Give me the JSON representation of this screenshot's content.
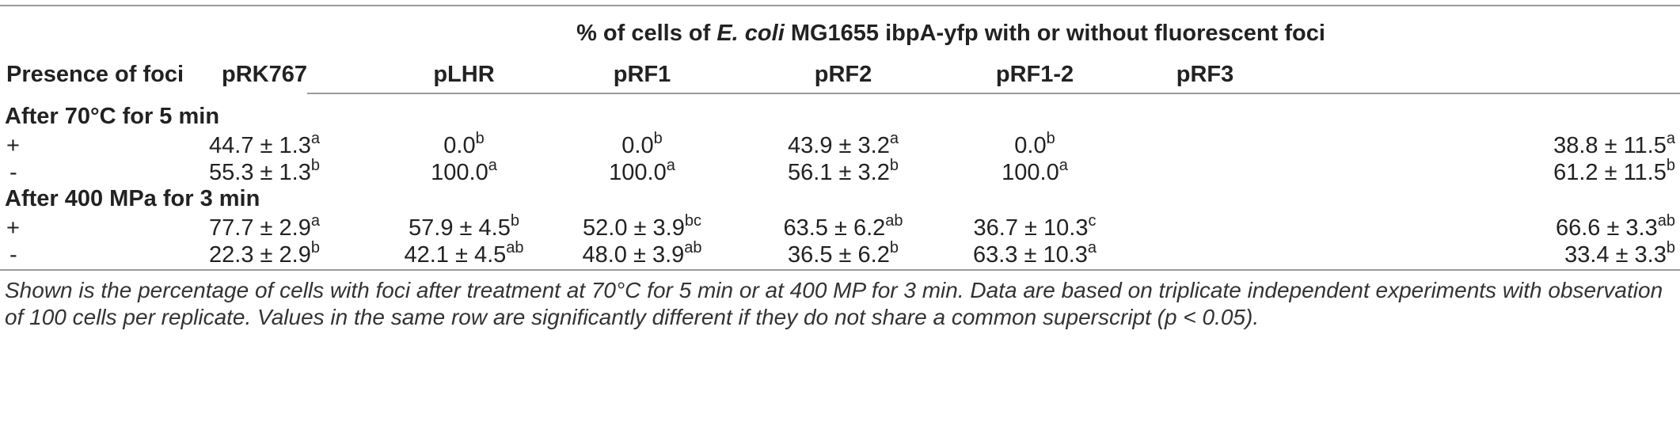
{
  "header": {
    "spanner_prefix": "% of cells of ",
    "spanner_species": "E. coli",
    "spanner_suffix": " MG1655 ibpA-yfp with or without fluorescent foci",
    "row_header": "Presence of foci",
    "columns": [
      "pRK767",
      "pLHR",
      "pRF1",
      "pRF2",
      "pRF1-2",
      "pRF3"
    ]
  },
  "sections": [
    {
      "title": "After 70°C for 5 min",
      "rows": [
        {
          "label": "+",
          "cells": [
            {
              "value": "44.7 ± 1.3",
              "sup": "a"
            },
            {
              "value": "0.0",
              "sup": "b"
            },
            {
              "value": "0.0",
              "sup": "b"
            },
            {
              "value": "43.9 ± 3.2",
              "sup": "a"
            },
            {
              "value": "0.0",
              "sup": "b"
            },
            {
              "value": "38.8 ± 11.5",
              "sup": "a"
            }
          ]
        },
        {
          "label": "-",
          "cells": [
            {
              "value": "55.3 ± 1.3",
              "sup": "b"
            },
            {
              "value": "100.0",
              "sup": "a"
            },
            {
              "value": "100.0",
              "sup": "a"
            },
            {
              "value": "56.1 ± 3.2",
              "sup": "b"
            },
            {
              "value": "100.0",
              "sup": "a"
            },
            {
              "value": "61.2 ± 11.5",
              "sup": "b"
            }
          ]
        }
      ]
    },
    {
      "title": "After 400 MPa for 3 min",
      "rows": [
        {
          "label": "+",
          "cells": [
            {
              "value": "77.7 ± 2.9",
              "sup": "a"
            },
            {
              "value": "57.9 ± 4.5",
              "sup": "b"
            },
            {
              "value": "52.0 ± 3.9",
              "sup": "bc"
            },
            {
              "value": "63.5 ± 6.2",
              "sup": "ab"
            },
            {
              "value": "36.7 ± 10.3",
              "sup": "c"
            },
            {
              "value": "66.6 ± 3.3",
              "sup": "ab"
            }
          ]
        },
        {
          "label": "-",
          "cells": [
            {
              "value": "22.3 ± 2.9",
              "sup": "b"
            },
            {
              "value": "42.1 ± 4.5",
              "sup": "ab"
            },
            {
              "value": "48.0 ± 3.9",
              "sup": "ab"
            },
            {
              "value": "36.5 ± 6.2",
              "sup": "b"
            },
            {
              "value": "63.3 ± 10.3",
              "sup": "a"
            },
            {
              "value": "33.4 ± 3.3",
              "sup": "b"
            }
          ]
        }
      ]
    }
  ],
  "footnote": "Shown is the percentage of cells with foci after treatment at 70°C for 5 min or at 400 MP for 3 min. Data are based on triplicate independent experiments with observation of 100 cells per replicate. Values in the same row are significantly different if they do not share a common superscript (p < 0.05)."
}
